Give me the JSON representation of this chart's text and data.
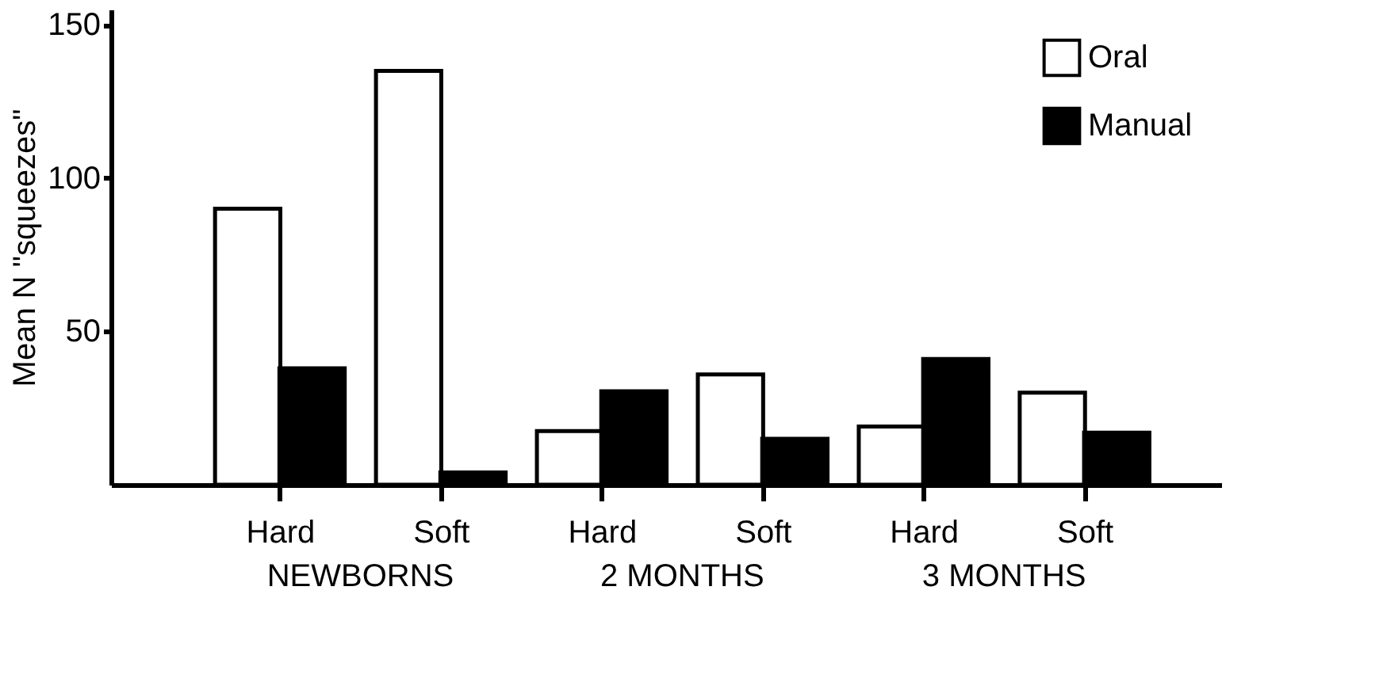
{
  "chart_data": {
    "type": "bar",
    "categories": [
      "Hard",
      "Soft",
      "Hard",
      "Soft",
      "Hard",
      "Soft"
    ],
    "series": [
      {
        "name": "Oral",
        "color": "#ffffff",
        "values": [
          90,
          135,
          17.5,
          36,
          19,
          30
        ]
      },
      {
        "name": "Manual",
        "color": "#000000",
        "values": [
          38,
          4,
          30.5,
          15,
          41,
          17
        ]
      }
    ],
    "ylabel": "Mean N \"squeezes\"",
    "annotations": [
      "NEWBORNS",
      "2 MONTHS",
      "3 MONTHS"
    ],
    "ylim": [
      0,
      155
    ],
    "yticks": [
      50,
      100,
      150
    ],
    "grid": false,
    "legend": "top right"
  }
}
